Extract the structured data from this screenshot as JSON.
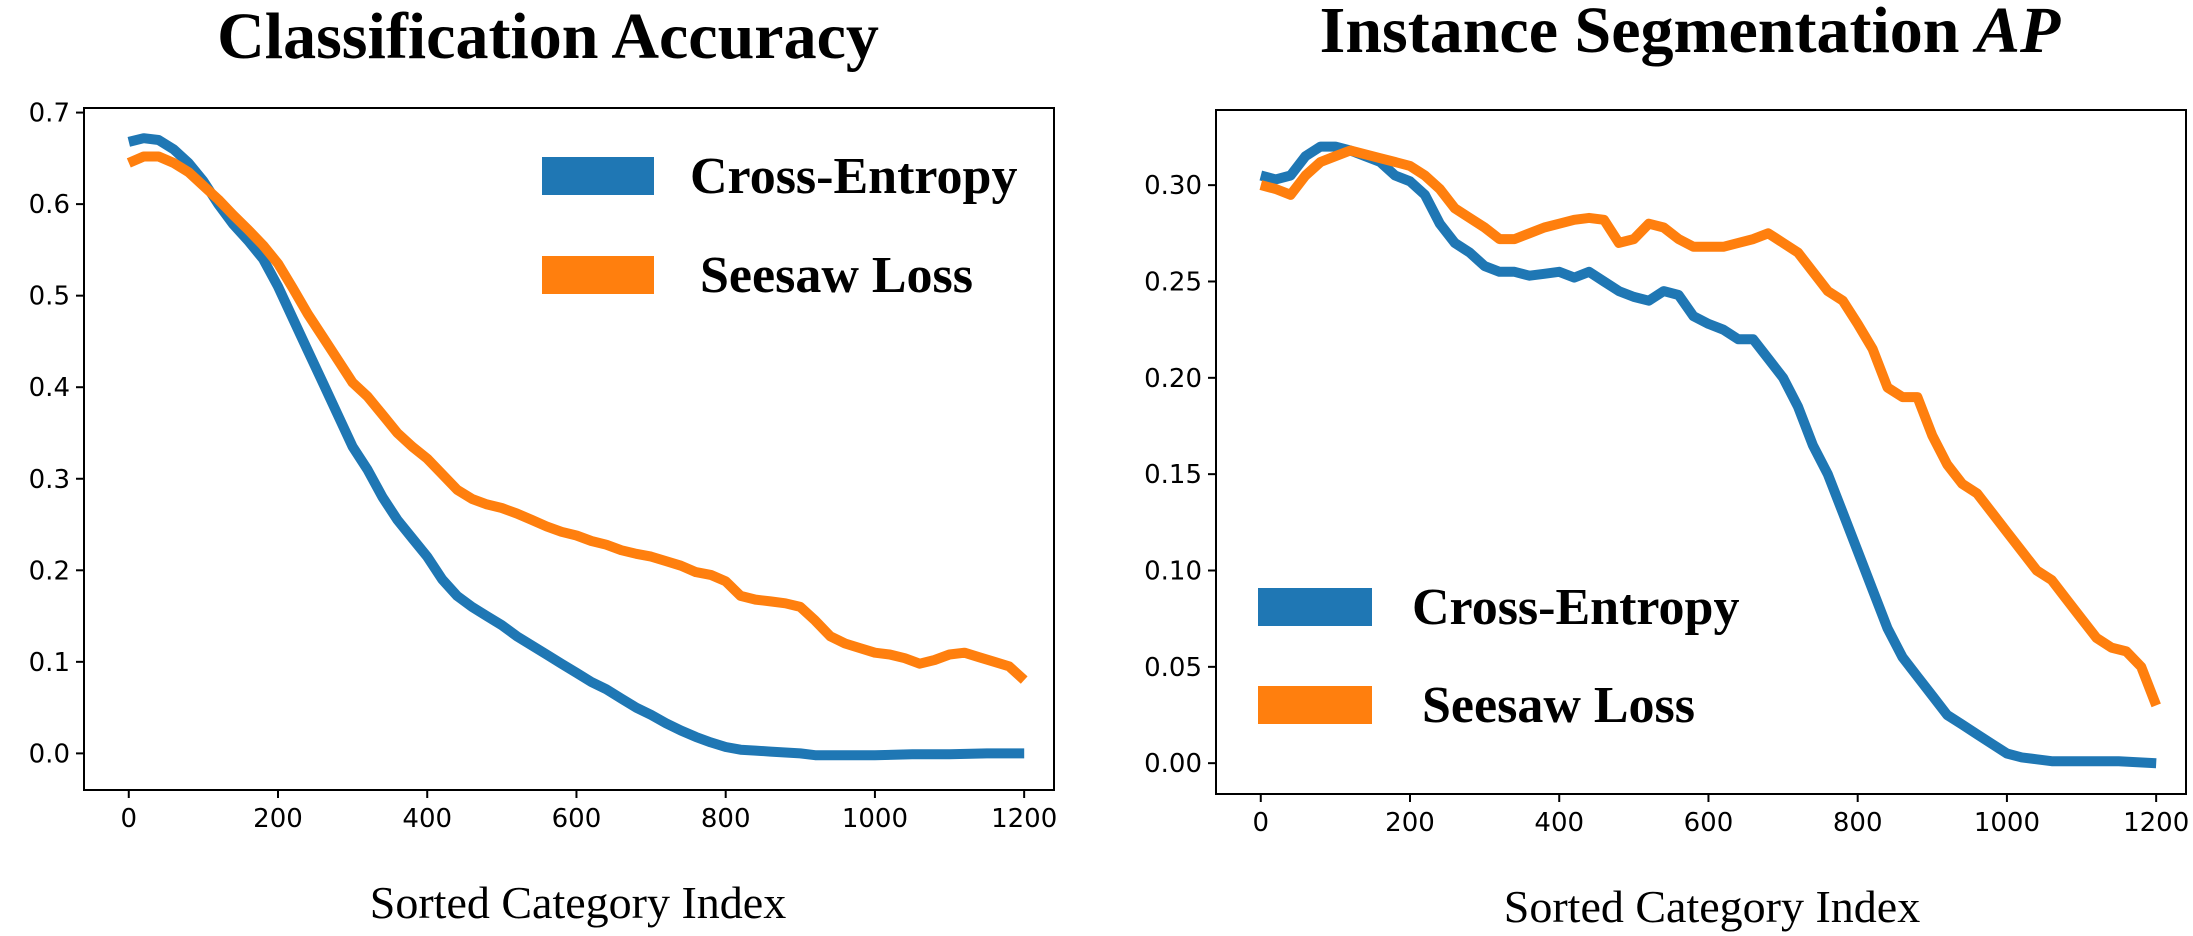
{
  "chart_data": [
    {
      "type": "line",
      "title": "Classification Accuracy",
      "title_italic": "",
      "xlabel": "Sorted Category Index",
      "ylabel": "",
      "xlim": [
        -60,
        1240
      ],
      "ylim": [
        -0.04,
        0.705
      ],
      "xticks": [
        0,
        200,
        400,
        600,
        800,
        1000,
        1200
      ],
      "xtick_labels": [
        "0",
        "200",
        "400",
        "600",
        "800",
        "1000",
        "1200"
      ],
      "yticks": [
        0.0,
        0.1,
        0.2,
        0.3,
        0.4,
        0.5,
        0.6,
        0.7
      ],
      "ytick_labels": [
        "0.0",
        "0.1",
        "0.2",
        "0.3",
        "0.4",
        "0.5",
        "0.6",
        "0.7"
      ],
      "grid": false,
      "legend_position": "top-right",
      "series": [
        {
          "name": "Cross-Entropy",
          "color": "#1f77b4",
          "x": [
            0,
            20,
            40,
            60,
            80,
            100,
            120,
            140,
            160,
            180,
            200,
            220,
            240,
            260,
            280,
            300,
            320,
            340,
            360,
            380,
            400,
            420,
            440,
            460,
            480,
            500,
            520,
            540,
            560,
            580,
            600,
            620,
            640,
            660,
            680,
            700,
            720,
            740,
            760,
            780,
            800,
            820,
            840,
            860,
            880,
            900,
            920,
            940,
            960,
            980,
            1000,
            1050,
            1100,
            1150,
            1200
          ],
          "y": [
            0.668,
            0.672,
            0.67,
            0.66,
            0.645,
            0.625,
            0.6,
            0.578,
            0.56,
            0.54,
            0.51,
            0.475,
            0.44,
            0.405,
            0.37,
            0.335,
            0.31,
            0.28,
            0.255,
            0.235,
            0.215,
            0.19,
            0.172,
            0.16,
            0.15,
            0.14,
            0.128,
            0.118,
            0.108,
            0.098,
            0.088,
            0.078,
            0.07,
            0.06,
            0.05,
            0.042,
            0.033,
            0.025,
            0.018,
            0.012,
            0.007,
            0.004,
            0.003,
            0.002,
            0.001,
            0.0,
            -0.002,
            -0.002,
            -0.002,
            -0.002,
            -0.002,
            -0.001,
            -0.001,
            0.0,
            0.0
          ]
        },
        {
          "name": "Seesaw Loss",
          "color": "#ff7f0e",
          "x": [
            0,
            20,
            40,
            60,
            80,
            100,
            120,
            140,
            160,
            180,
            200,
            220,
            240,
            260,
            280,
            300,
            320,
            340,
            360,
            380,
            400,
            420,
            440,
            460,
            480,
            500,
            520,
            540,
            560,
            580,
            600,
            620,
            640,
            660,
            680,
            700,
            720,
            740,
            760,
            780,
            800,
            820,
            840,
            860,
            880,
            900,
            920,
            940,
            960,
            980,
            1000,
            1020,
            1040,
            1060,
            1080,
            1100,
            1120,
            1140,
            1160,
            1180,
            1200
          ],
          "y": [
            0.645,
            0.652,
            0.652,
            0.645,
            0.635,
            0.62,
            0.605,
            0.588,
            0.572,
            0.555,
            0.535,
            0.508,
            0.48,
            0.455,
            0.43,
            0.405,
            0.39,
            0.37,
            0.35,
            0.335,
            0.322,
            0.305,
            0.288,
            0.278,
            0.272,
            0.268,
            0.262,
            0.255,
            0.248,
            0.242,
            0.238,
            0.232,
            0.228,
            0.222,
            0.218,
            0.215,
            0.21,
            0.205,
            0.198,
            0.195,
            0.188,
            0.172,
            0.168,
            0.166,
            0.164,
            0.16,
            0.145,
            0.128,
            0.12,
            0.115,
            0.11,
            0.108,
            0.104,
            0.098,
            0.102,
            0.108,
            0.11,
            0.105,
            0.1,
            0.095,
            0.08
          ]
        }
      ]
    },
    {
      "type": "line",
      "title": "Instance Segmentation ",
      "title_italic": "AP",
      "xlabel": "Sorted Category Index",
      "ylabel": "",
      "xlim": [
        -60,
        1240
      ],
      "ylim": [
        -0.016,
        0.339
      ],
      "xticks": [
        0,
        200,
        400,
        600,
        800,
        1000,
        1200
      ],
      "xtick_labels": [
        "0",
        "200",
        "400",
        "600",
        "800",
        "1000",
        "1200"
      ],
      "yticks": [
        0.0,
        0.05,
        0.1,
        0.15,
        0.2,
        0.25,
        0.3
      ],
      "ytick_labels": [
        "0.00",
        "0.05",
        "0.10",
        "0.15",
        "0.20",
        "0.25",
        "0.30"
      ],
      "grid": false,
      "legend_position": "bottom-left",
      "series": [
        {
          "name": "Cross-Entropy",
          "color": "#1f77b4",
          "x": [
            0,
            20,
            40,
            60,
            80,
            100,
            120,
            140,
            160,
            180,
            200,
            220,
            240,
            260,
            280,
            300,
            320,
            340,
            360,
            380,
            400,
            420,
            440,
            460,
            480,
            500,
            520,
            540,
            560,
            580,
            600,
            620,
            640,
            660,
            680,
            700,
            720,
            740,
            760,
            780,
            800,
            820,
            840,
            860,
            880,
            900,
            920,
            940,
            960,
            980,
            1000,
            1020,
            1040,
            1060,
            1080,
            1100,
            1150,
            1200
          ],
          "y": [
            0.305,
            0.303,
            0.305,
            0.315,
            0.32,
            0.32,
            0.318,
            0.315,
            0.312,
            0.305,
            0.302,
            0.295,
            0.28,
            0.27,
            0.265,
            0.258,
            0.255,
            0.255,
            0.253,
            0.254,
            0.255,
            0.252,
            0.255,
            0.25,
            0.245,
            0.242,
            0.24,
            0.245,
            0.243,
            0.232,
            0.228,
            0.225,
            0.22,
            0.22,
            0.21,
            0.2,
            0.185,
            0.165,
            0.15,
            0.13,
            0.11,
            0.09,
            0.07,
            0.055,
            0.045,
            0.035,
            0.025,
            0.02,
            0.015,
            0.01,
            0.005,
            0.003,
            0.002,
            0.001,
            0.001,
            0.001,
            0.001,
            0.0
          ]
        },
        {
          "name": "Seesaw Loss",
          "color": "#ff7f0e",
          "x": [
            0,
            20,
            40,
            60,
            80,
            100,
            120,
            140,
            160,
            180,
            200,
            220,
            240,
            260,
            280,
            300,
            320,
            340,
            360,
            380,
            400,
            420,
            440,
            460,
            480,
            500,
            520,
            540,
            560,
            580,
            600,
            620,
            640,
            660,
            680,
            700,
            720,
            740,
            760,
            780,
            800,
            820,
            840,
            860,
            880,
            900,
            920,
            940,
            960,
            980,
            1000,
            1020,
            1040,
            1060,
            1080,
            1100,
            1120,
            1140,
            1160,
            1180,
            1200
          ],
          "y": [
            0.3,
            0.298,
            0.295,
            0.305,
            0.312,
            0.315,
            0.318,
            0.316,
            0.314,
            0.312,
            0.31,
            0.305,
            0.298,
            0.288,
            0.283,
            0.278,
            0.272,
            0.272,
            0.275,
            0.278,
            0.28,
            0.282,
            0.283,
            0.282,
            0.27,
            0.272,
            0.28,
            0.278,
            0.272,
            0.268,
            0.268,
            0.268,
            0.27,
            0.272,
            0.275,
            0.27,
            0.265,
            0.255,
            0.245,
            0.24,
            0.228,
            0.215,
            0.195,
            0.19,
            0.19,
            0.17,
            0.155,
            0.145,
            0.14,
            0.13,
            0.12,
            0.11,
            0.1,
            0.095,
            0.085,
            0.075,
            0.065,
            0.06,
            0.058,
            0.05,
            0.03
          ]
        }
      ]
    }
  ]
}
